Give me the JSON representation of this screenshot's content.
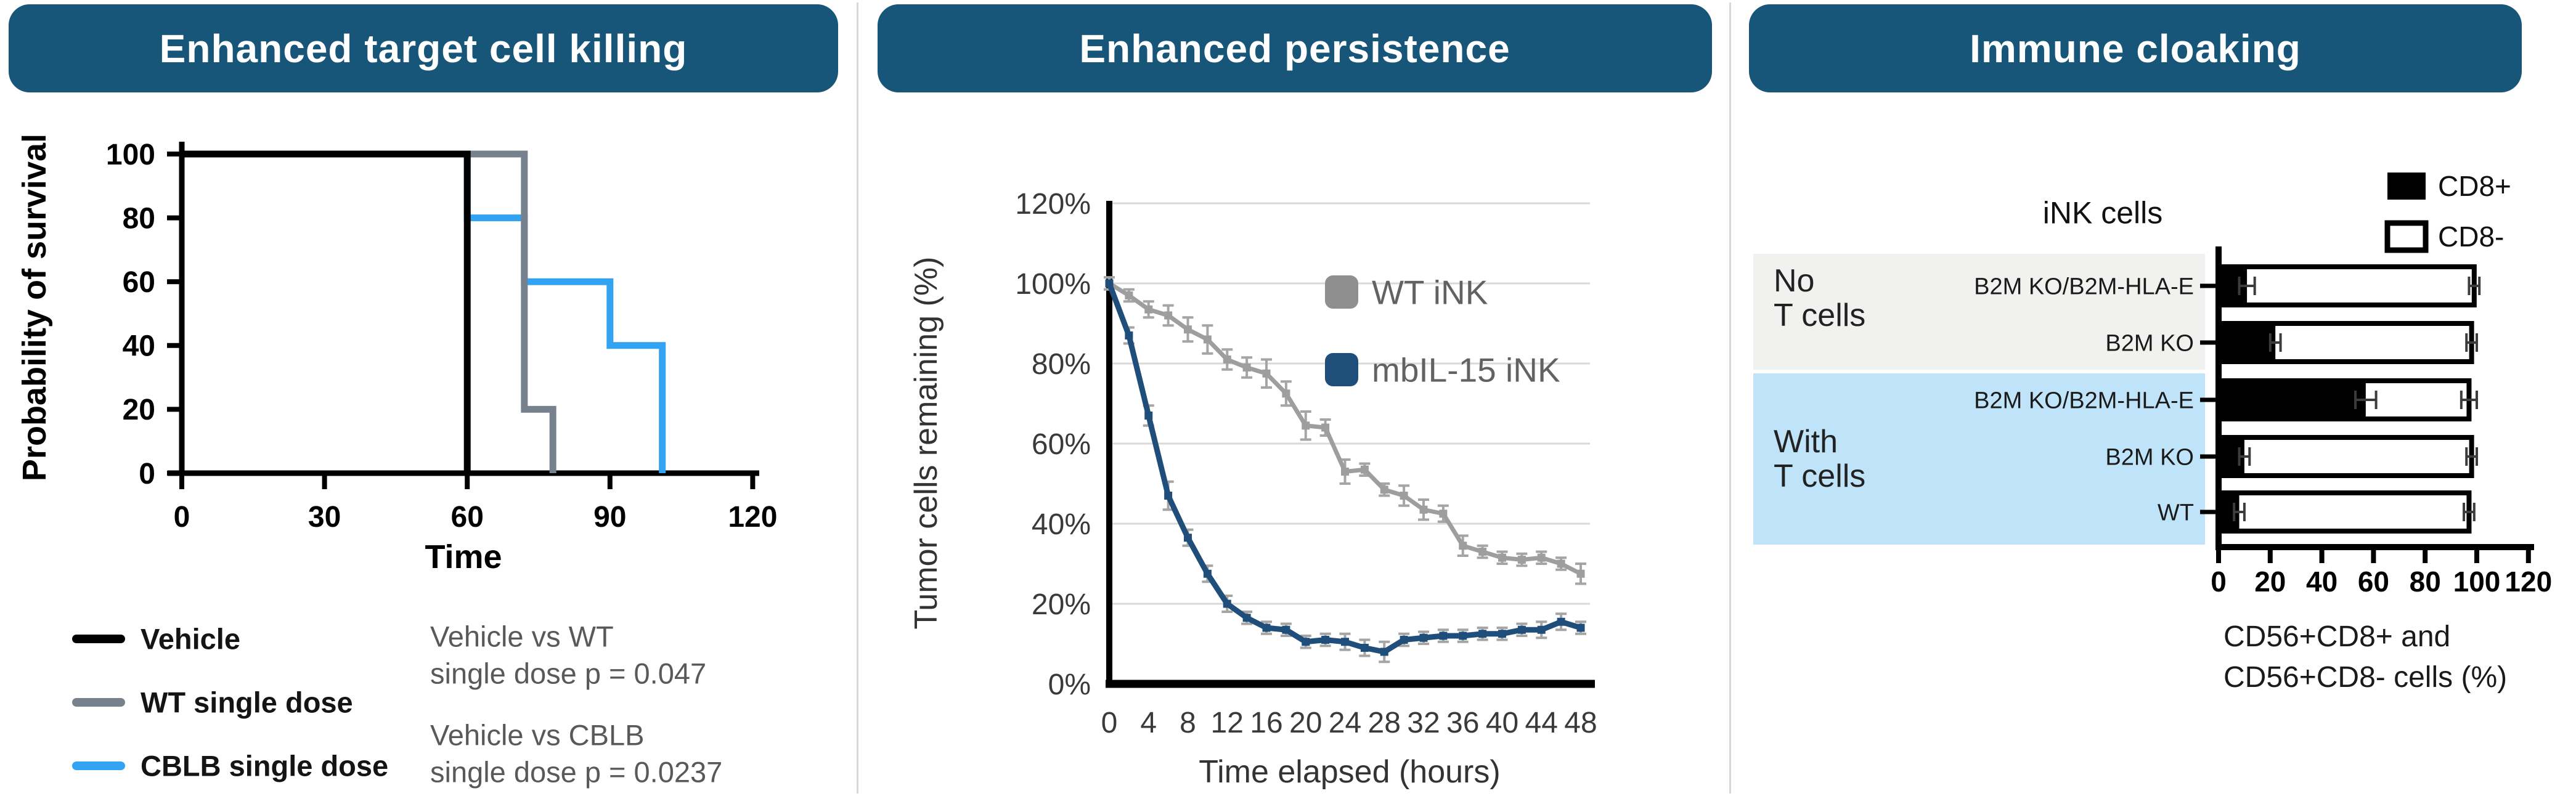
{
  "panels": [
    {
      "title": "Enhanced target cell killing"
    },
    {
      "title": "Enhanced persistence"
    },
    {
      "title": "Immune cloaking"
    }
  ],
  "colors": {
    "header_bg": "#175679",
    "divider": "#D8D8D8",
    "vehicle": "#000000",
    "wt_single_dose": "#76818D",
    "cblb_single_dose": "#32A3F2",
    "stats_text": "#595959",
    "wt_ink": "#9E9E9E",
    "wt_ink_legend": "#8F8F8F",
    "mbil15_ink": "#1F4E7A",
    "error_bar": "#A5A5A5",
    "gridline": "#D9D9D9",
    "no_tcells_bg": "#F1F1EF",
    "with_tcells_bg": "#BFE3F9",
    "cd8_pos_fill": "#000000",
    "cd8_neg_fill": "#FFFFFF"
  },
  "chart_data": [
    {
      "type": "line",
      "subtype": "kaplan-meier-step",
      "xlabel": "Time",
      "ylabel": "Probability of survival",
      "xlim": [
        0,
        120
      ],
      "ylim": [
        0,
        100
      ],
      "xticks": [
        0,
        30,
        60,
        90,
        120
      ],
      "yticks": [
        0,
        20,
        40,
        60,
        80,
        100
      ],
      "grid": false,
      "legend_position": "bottom-left",
      "series": [
        {
          "name": "CBLB single dose",
          "color": "#32A3F2",
          "points": [
            [
              0,
              100
            ],
            [
              60,
              100
            ],
            [
              60,
              80
            ],
            [
              72,
              80
            ],
            [
              72,
              60
            ],
            [
              90,
              60
            ],
            [
              90,
              40
            ],
            [
              101,
              40
            ],
            [
              101,
              0
            ]
          ]
        },
        {
          "name": "WT single dose",
          "color": "#76818D",
          "points": [
            [
              0,
              100
            ],
            [
              72,
              100
            ],
            [
              72,
              20
            ],
            [
              78,
              20
            ],
            [
              78,
              0
            ]
          ]
        },
        {
          "name": "Vehicle",
          "color": "#000000",
          "points": [
            [
              0,
              100
            ],
            [
              60,
              100
            ],
            [
              60,
              0
            ]
          ]
        }
      ],
      "legend_order": [
        "Vehicle",
        "WT single dose",
        "CBLB single dose"
      ],
      "stats": [
        {
          "lines": [
            "Vehicle vs WT",
            "single dose p = 0.047"
          ]
        },
        {
          "lines": [
            "Vehicle vs CBLB",
            "single dose p = 0.0237"
          ]
        }
      ]
    },
    {
      "type": "line",
      "xlabel": "Time elapsed (hours)",
      "ylabel": "Tumor cells remaining (%)",
      "xlim": [
        0,
        48
      ],
      "ylim_pct": [
        0,
        120
      ],
      "xticks": [
        0,
        4,
        8,
        12,
        16,
        20,
        24,
        28,
        32,
        36,
        40,
        44,
        48
      ],
      "yticks_pct": [
        0,
        20,
        40,
        60,
        80,
        100,
        120
      ],
      "grid": true,
      "legend_position": "top-right-inside",
      "x": [
        0,
        2,
        4,
        6,
        8,
        10,
        12,
        14,
        16,
        18,
        20,
        22,
        24,
        26,
        28,
        30,
        32,
        34,
        36,
        38,
        40,
        42,
        44,
        46,
        48
      ],
      "series": [
        {
          "name": "WT iNK",
          "color": "#9E9E9E",
          "legend_color": "#8F8F8F",
          "marker": "square",
          "values": [
            100,
            97,
            93.5,
            92,
            88.5,
            86,
            81,
            79,
            77.5,
            72.5,
            64.5,
            64,
            53,
            53.5,
            48.5,
            47,
            43.5,
            42.5,
            34.5,
            33,
            31.5,
            31,
            31.5,
            30,
            27.5
          ],
          "err": [
            1.5,
            1.5,
            2,
            2.5,
            3,
            3.5,
            2.5,
            2.5,
            3.5,
            3,
            3.5,
            2,
            3,
            1.5,
            1.5,
            2.5,
            2.5,
            2,
            2.5,
            1.5,
            1.5,
            1.5,
            1.5,
            1.5,
            2.5
          ]
        },
        {
          "name": "mbIL-15 iNK",
          "color": "#1F4E7A",
          "legend_color": "#1F4E7A",
          "marker": "square",
          "values": [
            100,
            87,
            67,
            47,
            36.5,
            27.5,
            20,
            16.5,
            14,
            13.5,
            10.5,
            11,
            10.5,
            9,
            8,
            11,
            11.5,
            12,
            12,
            12.5,
            12.5,
            13.5,
            13.5,
            15.5,
            14
          ],
          "err": [
            1.5,
            2,
            2.5,
            3.5,
            2,
            2,
            2,
            1.5,
            1.5,
            1.5,
            1.5,
            1.5,
            2,
            2,
            2.5,
            1.5,
            1.5,
            1.5,
            1.5,
            1.5,
            1.5,
            1.5,
            2,
            2,
            1.5
          ]
        }
      ]
    },
    {
      "type": "bar",
      "orientation": "horizontal-stacked",
      "title": "iNK cells",
      "xlabel_lines": [
        "CD56+CD8+ and",
        "CD56+CD8- cells (%)"
      ],
      "xlim": [
        0,
        120
      ],
      "xticks": [
        0,
        20,
        40,
        60,
        80,
        100,
        120
      ],
      "legend": [
        {
          "label": "CD8+",
          "fill": "#000000"
        },
        {
          "label": "CD8-",
          "fill": "#FFFFFF"
        }
      ],
      "groups": [
        {
          "label_lines": [
            "No",
            "T cells"
          ],
          "row_indexes": [
            0,
            1
          ],
          "bg": "#F1F1EF"
        },
        {
          "label_lines": [
            "With",
            "T cells"
          ],
          "row_indexes": [
            2,
            3,
            4
          ],
          "bg": "#BFE3F9"
        }
      ],
      "rows": [
        {
          "group": "No T cells",
          "label": "B2M KO/B2M-HLA-E",
          "cd8_pos": 11,
          "total": 99,
          "err_pos": 3,
          "err_total": 2
        },
        {
          "group": "No T cells",
          "label": "B2M KO",
          "cd8_pos": 22,
          "total": 98,
          "err_pos": 2,
          "err_total": 2
        },
        {
          "group": "With T cells",
          "label": "B2M KO/B2M-HLA-E",
          "cd8_pos": 57,
          "total": 97,
          "err_pos": 4,
          "err_total": 3
        },
        {
          "group": "With T cells",
          "label": "B2M KO",
          "cd8_pos": 10,
          "total": 98,
          "err_pos": 2,
          "err_total": 2
        },
        {
          "group": "With T cells",
          "label": "WT",
          "cd8_pos": 8,
          "total": 97,
          "err_pos": 2,
          "err_total": 2
        }
      ]
    }
  ]
}
